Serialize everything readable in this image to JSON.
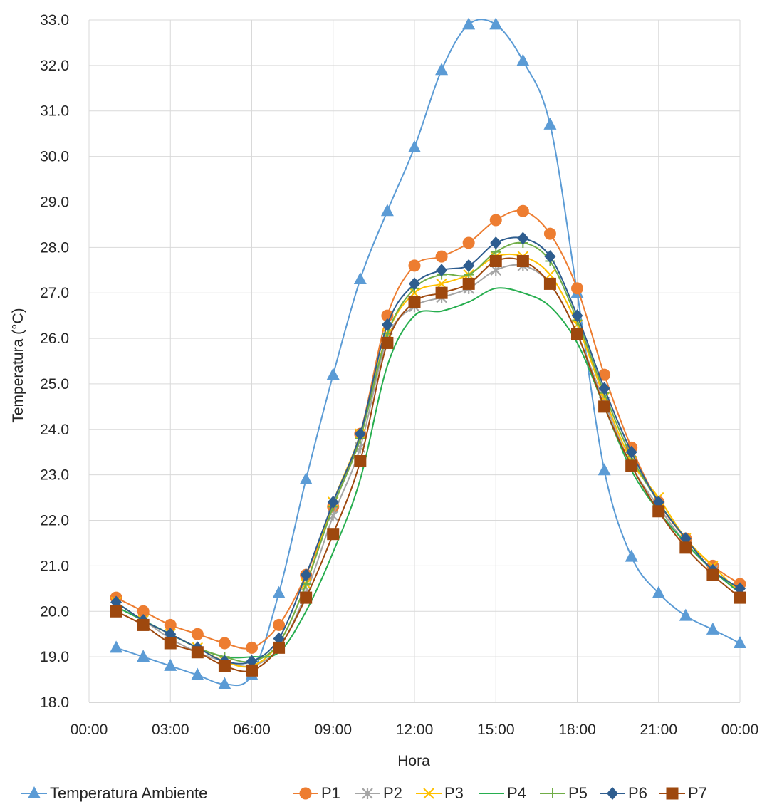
{
  "chart_data": {
    "type": "line",
    "title": "",
    "xlabel": "Hora",
    "ylabel": "Temperatura (°C)",
    "ylim": [
      18.0,
      33.0
    ],
    "xlim_hours": [
      0,
      24
    ],
    "grid": true,
    "legend_position": "bottom",
    "x_tick_labels": [
      "00:00",
      "03:00",
      "06:00",
      "09:00",
      "12:00",
      "15:00",
      "18:00",
      "21:00",
      "00:00"
    ],
    "y_tick_labels": [
      "18.0",
      "19.0",
      "20.0",
      "21.0",
      "22.0",
      "23.0",
      "24.0",
      "25.0",
      "26.0",
      "27.0",
      "28.0",
      "29.0",
      "30.0",
      "31.0",
      "32.0",
      "33.0"
    ],
    "x_hours": [
      1,
      2,
      3,
      4,
      5,
      6,
      7,
      8,
      9,
      10,
      11,
      12,
      13,
      14,
      15,
      16,
      17,
      18,
      19,
      20,
      21,
      22,
      23,
      24
    ],
    "series": [
      {
        "name": "Temperatura Ambiente",
        "color": "#5b9bd5",
        "marker": "triangle",
        "values": [
          19.2,
          19.0,
          18.8,
          18.6,
          18.4,
          18.6,
          20.4,
          22.9,
          25.2,
          27.3,
          28.8,
          30.2,
          31.9,
          32.9,
          32.9,
          32.1,
          30.7,
          27.0,
          23.1,
          21.2,
          20.4,
          19.9,
          19.6,
          19.3
        ]
      },
      {
        "name": "P1",
        "color": "#ed7d31",
        "marker": "circle",
        "values": [
          20.3,
          20.0,
          19.7,
          19.5,
          19.3,
          19.2,
          19.7,
          20.8,
          22.3,
          23.9,
          26.5,
          27.6,
          27.8,
          28.1,
          28.6,
          28.8,
          28.3,
          27.1,
          25.2,
          23.6,
          22.4,
          21.6,
          21.0,
          20.6
        ]
      },
      {
        "name": "P2",
        "color": "#a5a5a5",
        "marker": "asterisk",
        "values": [
          20.1,
          19.8,
          19.4,
          19.1,
          18.9,
          18.8,
          19.2,
          20.4,
          22.1,
          23.6,
          26.0,
          26.7,
          26.9,
          27.1,
          27.5,
          27.6,
          27.2,
          26.1,
          24.6,
          23.2,
          22.3,
          21.5,
          20.9,
          20.4
        ]
      },
      {
        "name": "P3",
        "color": "#ffc000",
        "marker": "x",
        "values": [
          20.2,
          19.8,
          19.5,
          19.2,
          18.9,
          18.8,
          19.3,
          20.6,
          22.4,
          23.9,
          26.1,
          27.0,
          27.2,
          27.4,
          27.8,
          27.8,
          27.4,
          26.3,
          24.7,
          23.3,
          22.5,
          21.6,
          21.0,
          20.4
        ]
      },
      {
        "name": "P4",
        "color": "#27ae4f",
        "marker": "none",
        "values": [
          20.1,
          19.8,
          19.5,
          19.2,
          19.0,
          19.0,
          19.1,
          20.0,
          21.3,
          22.9,
          25.4,
          26.5,
          26.6,
          26.8,
          27.1,
          27.0,
          26.7,
          25.9,
          24.5,
          23.1,
          22.2,
          21.5,
          20.9,
          20.4
        ]
      },
      {
        "name": "P5",
        "color": "#70ad47",
        "marker": "plus",
        "values": [
          20.2,
          19.8,
          19.5,
          19.2,
          19.0,
          18.9,
          19.3,
          20.6,
          22.3,
          23.8,
          26.1,
          27.1,
          27.4,
          27.4,
          27.9,
          28.1,
          27.7,
          26.4,
          24.8,
          23.4,
          22.4,
          21.6,
          20.9,
          20.5
        ]
      },
      {
        "name": "P6",
        "color": "#2e5d8f",
        "marker": "diamond",
        "values": [
          20.2,
          19.8,
          19.5,
          19.2,
          18.9,
          18.9,
          19.4,
          20.8,
          22.4,
          23.9,
          26.3,
          27.2,
          27.5,
          27.6,
          28.1,
          28.2,
          27.8,
          26.5,
          24.9,
          23.5,
          22.4,
          21.6,
          20.9,
          20.5
        ]
      },
      {
        "name": "P7",
        "color": "#9e480e",
        "marker": "square",
        "values": [
          20.0,
          19.7,
          19.3,
          19.1,
          18.8,
          18.7,
          19.2,
          20.3,
          21.7,
          23.3,
          25.9,
          26.8,
          27.0,
          27.2,
          27.7,
          27.7,
          27.2,
          26.1,
          24.5,
          23.2,
          22.2,
          21.4,
          20.8,
          20.3
        ]
      }
    ]
  }
}
